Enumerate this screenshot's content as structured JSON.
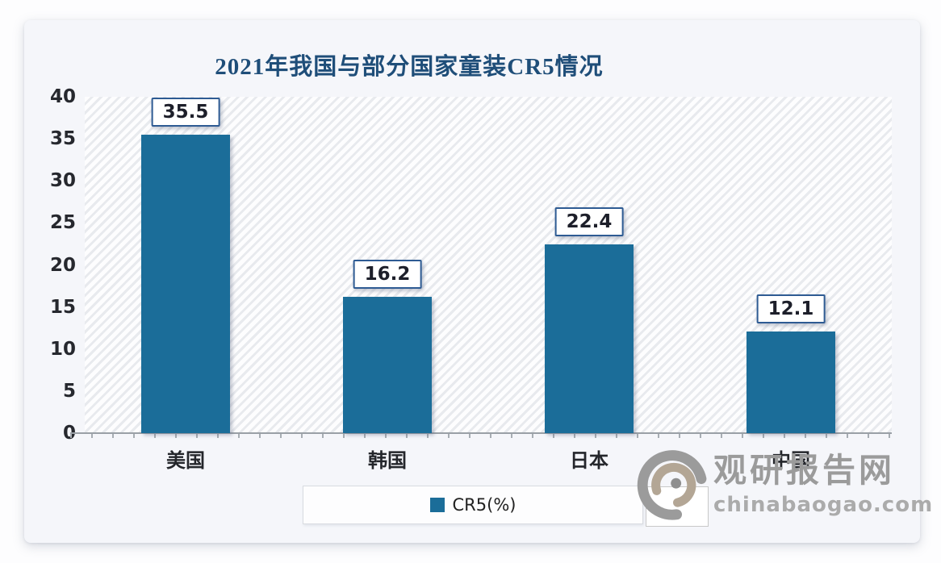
{
  "chart_data": {
    "type": "bar",
    "title": "2021年我国与部分国家童装CR5情况",
    "categories": [
      "美国",
      "韩国",
      "日本",
      "中国"
    ],
    "series": [
      {
        "name": "CR5(%)",
        "values": [
          35.5,
          16.2,
          22.4,
          12.1
        ]
      }
    ],
    "data_labels": [
      "35.5",
      "16.2",
      "22.4",
      "12.1"
    ],
    "ylim": [
      0,
      40
    ],
    "yticks": [
      40,
      35,
      30,
      25,
      20,
      15,
      10,
      5,
      0
    ],
    "xlabel": "",
    "ylabel": "",
    "grid": false,
    "legend": {
      "position": "bottom",
      "entries": [
        "CR5(%)"
      ]
    },
    "colors": {
      "bar": "#1B6D99",
      "title": "#1F4E79",
      "label_box_border": "#2E5B93",
      "axis_text": "#26282e",
      "baseline": "#9aa0a6"
    }
  },
  "watermark": {
    "site_name": "观研报告网",
    "site_url": "chinabaogao.com"
  }
}
